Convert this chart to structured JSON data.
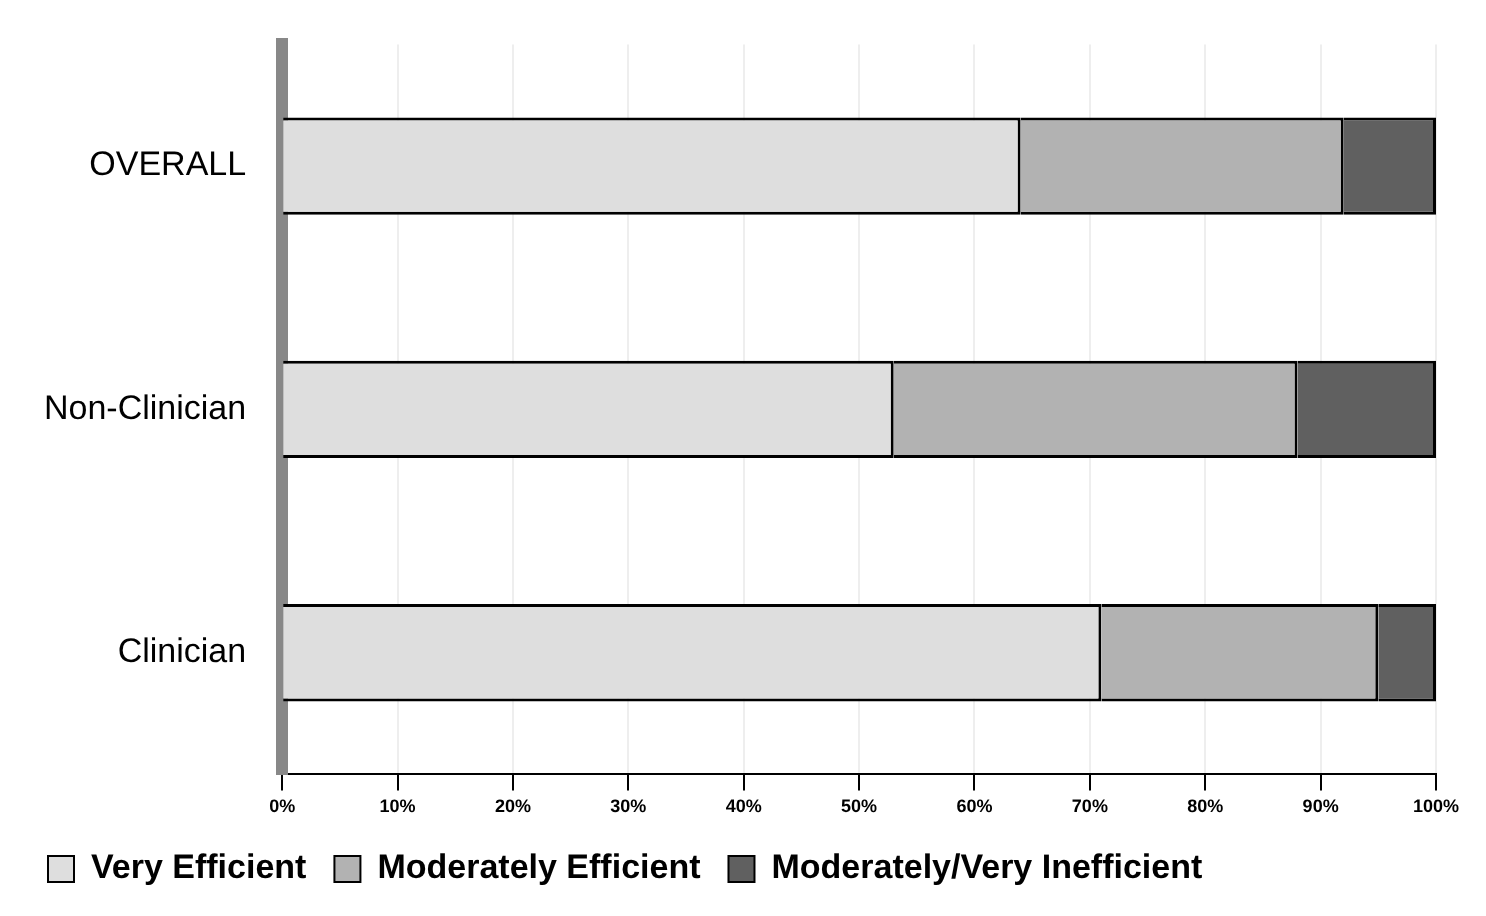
{
  "chart_data": {
    "type": "bar",
    "orientation": "horizontal",
    "stacked": true,
    "categories": [
      "OVERALL",
      "Non-Clinician",
      "Clinician"
    ],
    "series": [
      {
        "name": "Very Efficient",
        "color": "#dedede",
        "values": [
          64,
          53,
          71
        ]
      },
      {
        "name": "Moderately Efficient",
        "color": "#b2b2b2",
        "values": [
          28,
          35,
          24
        ]
      },
      {
        "name": "Moderately/Very Inefficient",
        "color": "#606060",
        "values": [
          8,
          12,
          5
        ]
      }
    ],
    "xlim": [
      0,
      100
    ],
    "xticks": [
      {
        "value": 0,
        "label": "0%"
      },
      {
        "value": 10,
        "label": "10%"
      },
      {
        "value": 20,
        "label": "20%"
      },
      {
        "value": 30,
        "label": "30%"
      },
      {
        "value": 40,
        "label": "40%"
      },
      {
        "value": 50,
        "label": "50%"
      },
      {
        "value": 60,
        "label": "60%"
      },
      {
        "value": 70,
        "label": "70%"
      },
      {
        "value": 80,
        "label": "80%"
      },
      {
        "value": 90,
        "label": "90%"
      },
      {
        "value": 100,
        "label": "100%"
      }
    ],
    "grid": "x",
    "legend": "bottom"
  }
}
